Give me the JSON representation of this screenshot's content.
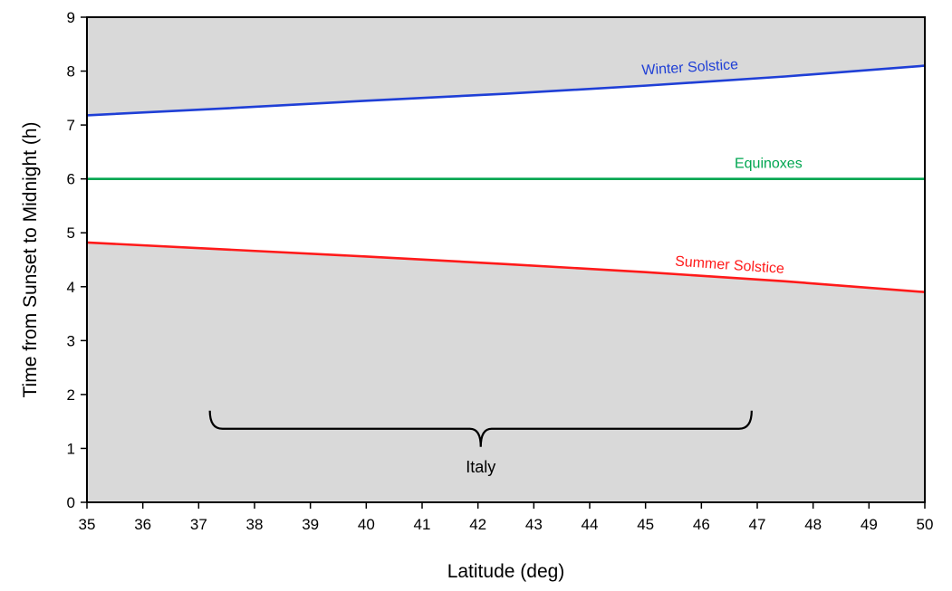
{
  "chart_data": {
    "type": "line",
    "title": "",
    "xlabel": "Latitude (deg)",
    "ylabel": "Time from Sunset to Midnight  (h)",
    "xlim": [
      35,
      50
    ],
    "ylim": [
      0,
      9
    ],
    "x_ticks": [
      35,
      36,
      37,
      38,
      39,
      40,
      41,
      42,
      43,
      44,
      45,
      46,
      47,
      48,
      49,
      50
    ],
    "y_ticks": [
      0,
      1,
      2,
      3,
      4,
      5,
      6,
      7,
      8,
      9
    ],
    "grid": false,
    "legend": "none",
    "series": [
      {
        "name": "Winter Solstice",
        "color": "#1f3fd6",
        "x": [
          35,
          37.5,
          40,
          42.5,
          45,
          47.5,
          50
        ],
        "y": [
          7.18,
          7.31,
          7.45,
          7.58,
          7.73,
          7.9,
          8.1
        ]
      },
      {
        "name": "Equinoxes",
        "color": "#00a651",
        "x": [
          35,
          50
        ],
        "y": [
          6.0,
          6.0
        ]
      },
      {
        "name": "Summer Solstice",
        "color": "#ff1a1a",
        "x": [
          35,
          37.5,
          40,
          42.5,
          45,
          47.5,
          50
        ],
        "y": [
          4.82,
          4.69,
          4.56,
          4.42,
          4.27,
          4.1,
          3.9
        ]
      }
    ],
    "shaded_bands": [
      {
        "y_from": 8.0,
        "y_to": 9,
        "color": "#d9d9d9",
        "follows_series": "Winter Solstice"
      },
      {
        "y_from": 0,
        "y_to": 4.0,
        "color": "#d9d9d9",
        "follows_series": "Summer Solstice"
      }
    ],
    "annotations": [
      {
        "text": "Italy",
        "type": "brace",
        "x_from": 37.2,
        "x_to": 46.9,
        "y": 1.7
      }
    ],
    "colors": {
      "shade": "#d9d9d9",
      "axis": "#000000",
      "plot_background": "#ffffff"
    }
  }
}
